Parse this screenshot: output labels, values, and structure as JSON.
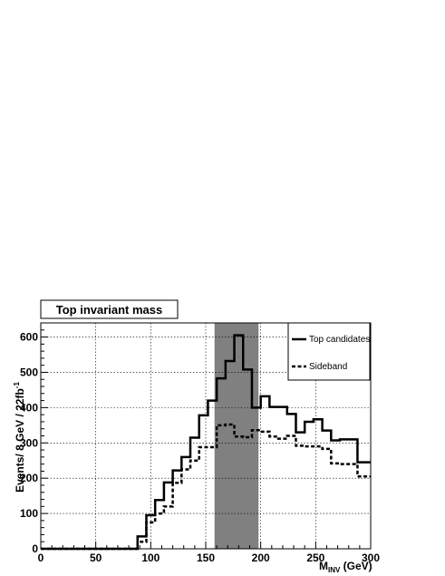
{
  "chart_data": {
    "type": "line",
    "title": "Top invariant mass",
    "xlabel_main": "M",
    "xlabel_sub": "INV",
    "xlabel_unit": " (GeV)",
    "ylabel_main": "Events/ 8 GeV / 22fb",
    "ylabel_sup": "-1",
    "xlim": [
      0,
      300
    ],
    "ylim": [
      0,
      640
    ],
    "xticks": [
      0,
      50,
      100,
      150,
      200,
      250,
      300
    ],
    "yticks": [
      0,
      100,
      200,
      300,
      400,
      500,
      600
    ],
    "grid": true,
    "legend_position": "top-right",
    "highlight_band": {
      "x0": 158,
      "x1": 198,
      "color": "#808080"
    },
    "bin_edges": [
      0,
      8,
      16,
      24,
      32,
      40,
      48,
      56,
      64,
      72,
      80,
      88,
      96,
      104,
      112,
      120,
      128,
      136,
      144,
      152,
      160,
      168,
      176,
      184,
      192,
      200,
      208,
      216,
      224,
      232,
      240,
      248,
      256,
      264,
      272,
      280,
      288,
      296,
      304
    ],
    "series": [
      {
        "name": "Top candidates",
        "style": "solid",
        "values": [
          0,
          0,
          0,
          0,
          0,
          0,
          0,
          0,
          0,
          0,
          0,
          35,
          95,
          138,
          188,
          222,
          260,
          315,
          378,
          420,
          483,
          532,
          605,
          508,
          400,
          432,
          402,
          402,
          382,
          330,
          360,
          367,
          335,
          307,
          310,
          310,
          245,
          245
        ]
      },
      {
        "name": "Sideband",
        "style": "dashed",
        "values": [
          0,
          0,
          0,
          0,
          0,
          0,
          0,
          0,
          0,
          0,
          0,
          20,
          75,
          100,
          120,
          187,
          225,
          250,
          288,
          288,
          350,
          352,
          318,
          316,
          336,
          332,
          318,
          312,
          320,
          292,
          290,
          290,
          283,
          242,
          240,
          240,
          205,
          205
        ]
      }
    ]
  }
}
